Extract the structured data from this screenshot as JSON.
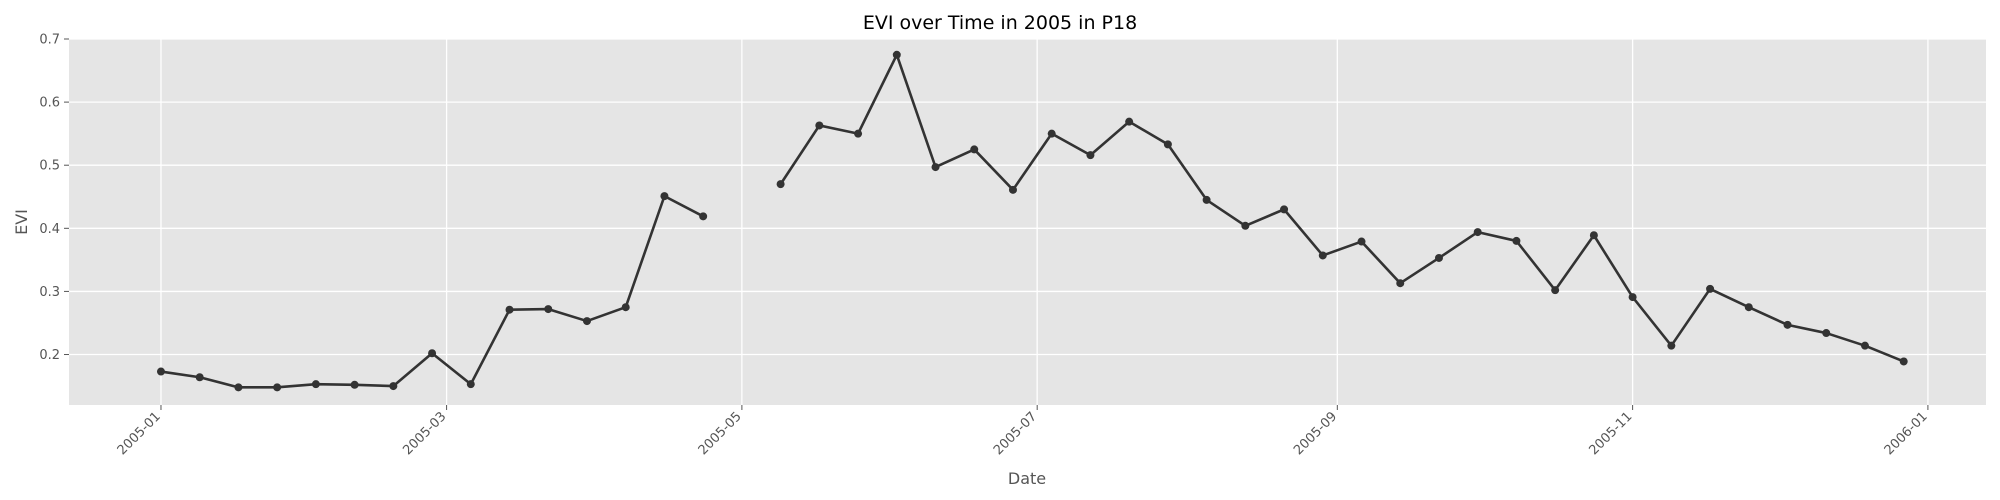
{
  "chart_data": {
    "type": "line",
    "title": "EVI over Time in 2005 in P18",
    "xlabel": "Date",
    "ylabel": "EVI",
    "x_axis_type": "date",
    "xlim": [
      "2004-12-13",
      "2006-01-13"
    ],
    "ylim": [
      0.12,
      0.7
    ],
    "x_ticks": [
      "2005-01",
      "2005-03",
      "2005-05",
      "2005-07",
      "2005-09",
      "2005-11",
      "2006-01"
    ],
    "x_tick_dates": [
      "2005-01-01",
      "2005-03-01",
      "2005-05-01",
      "2005-07-01",
      "2005-09-01",
      "2005-11-01",
      "2006-01-01"
    ],
    "y_ticks": [
      0.2,
      0.3,
      0.4,
      0.5,
      0.6,
      0.7
    ],
    "y_tick_labels": [
      "0.2",
      "0.3",
      "0.4",
      "0.5",
      "0.6",
      "0.7"
    ],
    "grid": true,
    "colors": {
      "background": "#e5e5e5",
      "grid": "#ffffff",
      "line": "#333333",
      "marker": "#333333"
    },
    "series": [
      {
        "marker": "circle",
        "points": [
          {
            "x": "2005-01-01",
            "y": 0.173
          },
          {
            "x": "2005-01-09",
            "y": 0.164
          },
          {
            "x": "2005-01-17",
            "y": 0.148
          },
          {
            "x": "2005-01-25",
            "y": 0.148
          },
          {
            "x": "2005-02-02",
            "y": 0.153
          },
          {
            "x": "2005-02-10",
            "y": 0.152
          },
          {
            "x": "2005-02-18",
            "y": 0.15
          },
          {
            "x": "2005-02-26",
            "y": 0.202
          },
          {
            "x": "2005-03-06",
            "y": 0.153
          },
          {
            "x": "2005-03-14",
            "y": 0.271
          },
          {
            "x": "2005-03-22",
            "y": 0.272
          },
          {
            "x": "2005-03-30",
            "y": 0.253
          },
          {
            "x": "2005-04-07",
            "y": 0.275
          },
          {
            "x": "2005-04-15",
            "y": 0.451
          },
          {
            "x": "2005-04-23",
            "y": 0.419
          },
          {
            "x": "2005-05-01",
            "y": null
          },
          {
            "x": "2005-05-09",
            "y": 0.47
          },
          {
            "x": "2005-05-17",
            "y": 0.563
          },
          {
            "x": "2005-05-25",
            "y": 0.55
          },
          {
            "x": "2005-06-02",
            "y": 0.675
          },
          {
            "x": "2005-06-10",
            "y": 0.497
          },
          {
            "x": "2005-06-18",
            "y": 0.525
          },
          {
            "x": "2005-06-26",
            "y": 0.461
          },
          {
            "x": "2005-07-04",
            "y": 0.55
          },
          {
            "x": "2005-07-12",
            "y": 0.516
          },
          {
            "x": "2005-07-20",
            "y": 0.569
          },
          {
            "x": "2005-07-28",
            "y": 0.533
          },
          {
            "x": "2005-08-05",
            "y": 0.445
          },
          {
            "x": "2005-08-13",
            "y": 0.404
          },
          {
            "x": "2005-08-21",
            "y": 0.43
          },
          {
            "x": "2005-08-29",
            "y": 0.357
          },
          {
            "x": "2005-09-06",
            "y": 0.379
          },
          {
            "x": "2005-09-14",
            "y": 0.313
          },
          {
            "x": "2005-09-22",
            "y": 0.353
          },
          {
            "x": "2005-09-30",
            "y": 0.394
          },
          {
            "x": "2005-10-08",
            "y": 0.38
          },
          {
            "x": "2005-10-16",
            "y": 0.302
          },
          {
            "x": "2005-10-24",
            "y": 0.389
          },
          {
            "x": "2005-11-01",
            "y": 0.291
          },
          {
            "x": "2005-11-09",
            "y": 0.214
          },
          {
            "x": "2005-11-17",
            "y": 0.304
          },
          {
            "x": "2005-11-25",
            "y": 0.275
          },
          {
            "x": "2005-12-03",
            "y": 0.247
          },
          {
            "x": "2005-12-11",
            "y": 0.234
          },
          {
            "x": "2005-12-19",
            "y": 0.214
          },
          {
            "x": "2005-12-27",
            "y": 0.189
          }
        ]
      }
    ]
  }
}
